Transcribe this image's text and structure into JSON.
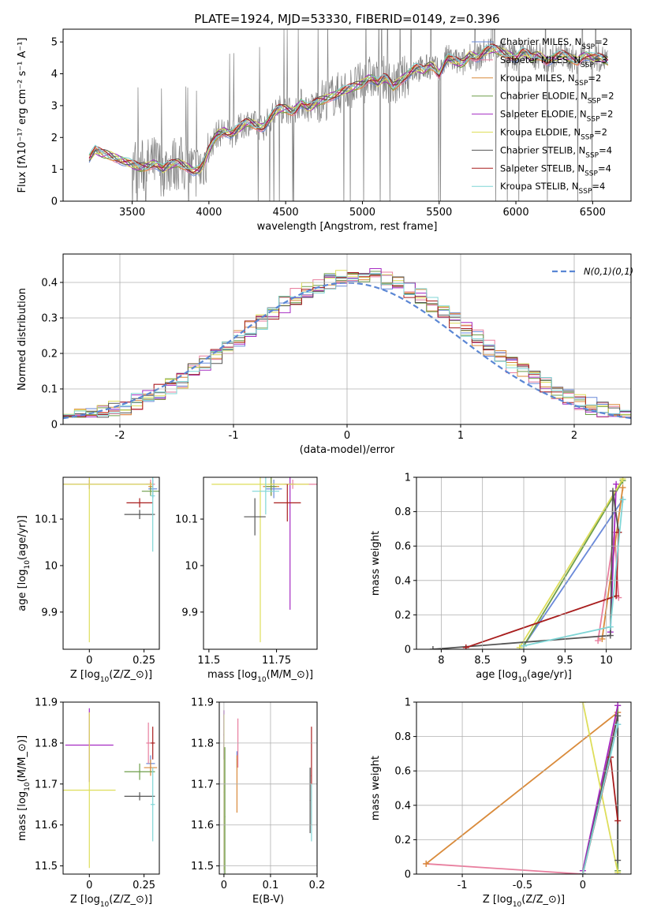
{
  "figure": {
    "title": "PLATE=1924, MJD=53330, FIBERID=0149, z=0.396"
  },
  "chart_data": [
    {
      "id": "spectrum",
      "type": "line",
      "xlabel": "wavelength [Angstrom, rest frame]",
      "ylabel": "Flux [fλ10⁻¹⁷ erg cm⁻² s⁻¹ A⁻¹]",
      "xlim": [
        3050,
        6750
      ],
      "ylim": [
        0,
        5.4
      ],
      "xticks": [
        3500,
        4000,
        4500,
        5000,
        5500,
        6000,
        6500
      ],
      "yticks": [
        0,
        1,
        2,
        3,
        4,
        5
      ],
      "grid": false,
      "legend_placement": "right",
      "observed": {
        "color": "#808080",
        "x": [
          3220,
          3260,
          3300,
          3350,
          3400,
          3450,
          3500,
          3550,
          3600,
          3650,
          3700,
          3750,
          3800,
          3850,
          3900,
          3950,
          4000,
          4050,
          4100,
          4150,
          4200,
          4250,
          4300,
          4350,
          4400,
          4450,
          4500,
          4550,
          4600,
          4650,
          4700,
          4750,
          4800,
          4850,
          4900,
          4950,
          5000,
          5050,
          5100,
          5150,
          5200,
          5250,
          5300,
          5350,
          5400,
          5450,
          5500,
          5550,
          5600,
          5650,
          5700,
          5750,
          5800,
          5850,
          5900,
          5950,
          6000,
          6050,
          6100,
          6150,
          6200,
          6250,
          6300,
          6350,
          6400,
          6450,
          6500,
          6550,
          6600
        ],
        "y": [
          1.35,
          1.6,
          1.5,
          1.45,
          1.35,
          1.25,
          1.15,
          1.05,
          1.1,
          1.2,
          1.0,
          1.15,
          1.2,
          1.1,
          0.95,
          1.0,
          1.6,
          2.1,
          2.2,
          2.1,
          2.3,
          2.5,
          2.4,
          2.3,
          2.6,
          2.9,
          2.9,
          2.8,
          3.1,
          2.9,
          3.1,
          3.2,
          3.3,
          3.4,
          3.5,
          3.6,
          3.7,
          3.9,
          3.7,
          3.9,
          3.6,
          3.8,
          4.0,
          4.2,
          4.1,
          4.3,
          4.0,
          4.5,
          4.4,
          4.3,
          4.6,
          4.5,
          4.7,
          4.8,
          4.7,
          4.6,
          4.5,
          4.7,
          4.5,
          4.6,
          4.4,
          4.5,
          4.6,
          4.5,
          4.4,
          4.6,
          4.5,
          4.5,
          4.4
        ]
      },
      "series": [
        {
          "name": "Chabrier MILES, N$_{SSP}$=2",
          "color": "#6a89d9"
        },
        {
          "name": "Salpeter MILES, N$_{SSP}$=3",
          "color": "#e87e9e"
        },
        {
          "name": "Kroupa MILES, N$_{SSP}$=2",
          "color": "#d98a3a"
        },
        {
          "name": "Chabrier ELODIE, N$_{SSP}$=2",
          "color": "#6e9e4a"
        },
        {
          "name": "Salpeter ELODIE, N$_{SSP}$=2",
          "color": "#a52bc2"
        },
        {
          "name": "Kroupa ELODIE, N$_{SSP}$=2",
          "color": "#dede5a"
        },
        {
          "name": "Chabrier STELIB, N$_{SSP}$=4",
          "color": "#555555"
        },
        {
          "name": "Salpeter STELIB, N$_{SSP}$=4",
          "color": "#a81d1d"
        },
        {
          "name": "Kroupa STELIB, N$_{SSP}$=4",
          "color": "#7fd6d6"
        }
      ]
    },
    {
      "id": "residuals",
      "type": "line",
      "xlabel": "(data-model)/error",
      "ylabel": "Normed distribution",
      "xlim": [
        -2.5,
        2.5
      ],
      "ylim": [
        0,
        0.48
      ],
      "xticks": [
        -2,
        -1,
        0,
        1,
        2
      ],
      "yticks": [
        0.0,
        0.1,
        0.2,
        0.3,
        0.4
      ],
      "grid": true,
      "legend_placement": "top-right",
      "reference": {
        "name": "$\\mathcal{N}(0,1)$",
        "color": "#5a86d4",
        "mu": 0,
        "sigma": 1
      }
    },
    {
      "id": "age-vs-Z",
      "type": "scatter",
      "xlabel": "Z [log$_{10}$(Z/Z$_\\odot$)]",
      "ylabel": "age  [log$_{10}$(age/yr)]",
      "xlim": [
        -0.12,
        0.32
      ],
      "ylim": [
        9.82,
        10.19
      ],
      "xticks": [
        0.0,
        0.25
      ],
      "yticks": [
        9.9,
        10.0,
        10.1
      ],
      "grid": false
    },
    {
      "id": "age-vs-mass",
      "type": "scatter",
      "xlabel": "mass [log$_{10}$(M/M$_\\odot$)]",
      "ylabel": "",
      "xlim": [
        11.48,
        11.9
      ],
      "ylim": [
        9.82,
        10.19
      ],
      "xticks": [
        11.5,
        11.75
      ],
      "yticks": [
        9.9,
        10.0,
        10.1
      ],
      "grid": false
    },
    {
      "id": "massweight-vs-age",
      "type": "line",
      "xlabel": "age  [log$_{10}$(age/yr)]",
      "ylabel": "mass weight",
      "xlim": [
        7.7,
        10.3
      ],
      "ylim": [
        0,
        1
      ],
      "xticks": [
        8.0,
        8.5,
        9.0,
        9.5,
        10.0
      ],
      "yticks": [
        0.0,
        0.2,
        0.4,
        0.6,
        0.8,
        1.0
      ],
      "grid": true
    },
    {
      "id": "mass-vs-Z",
      "type": "scatter",
      "xlabel": "Z [log$_{10}$(Z/Z$_\\odot$)]",
      "ylabel": "mass [log$_{10}$(M/M$_\\odot$)]",
      "xlim": [
        -0.12,
        0.32
      ],
      "ylim": [
        11.48,
        11.9
      ],
      "xticks": [
        0.0,
        0.25
      ],
      "yticks": [
        11.5,
        11.6,
        11.7,
        11.8,
        11.9
      ],
      "grid": false
    },
    {
      "id": "mass-vs-EBV",
      "type": "scatter",
      "xlabel": "E(B-V)",
      "ylabel": "",
      "xlim": [
        -0.01,
        0.2
      ],
      "ylim": [
        11.48,
        11.9
      ],
      "xticks": [
        0.0,
        0.1,
        0.2
      ],
      "yticks": [
        11.5,
        11.6,
        11.7,
        11.8,
        11.9
      ],
      "grid": true
    },
    {
      "id": "massweight-vs-Z",
      "type": "line",
      "xlabel": "Z [log$_{10}$(Z/Z$_\\odot$)]",
      "ylabel": "mass weight",
      "xlim": [
        -1.38,
        0.4
      ],
      "ylim": [
        0,
        1
      ],
      "xticks": [
        -1.0,
        -0.5,
        0.0
      ],
      "yticks": [
        0.0,
        0.2,
        0.4,
        0.6,
        0.8,
        1.0
      ],
      "grid": true
    }
  ]
}
